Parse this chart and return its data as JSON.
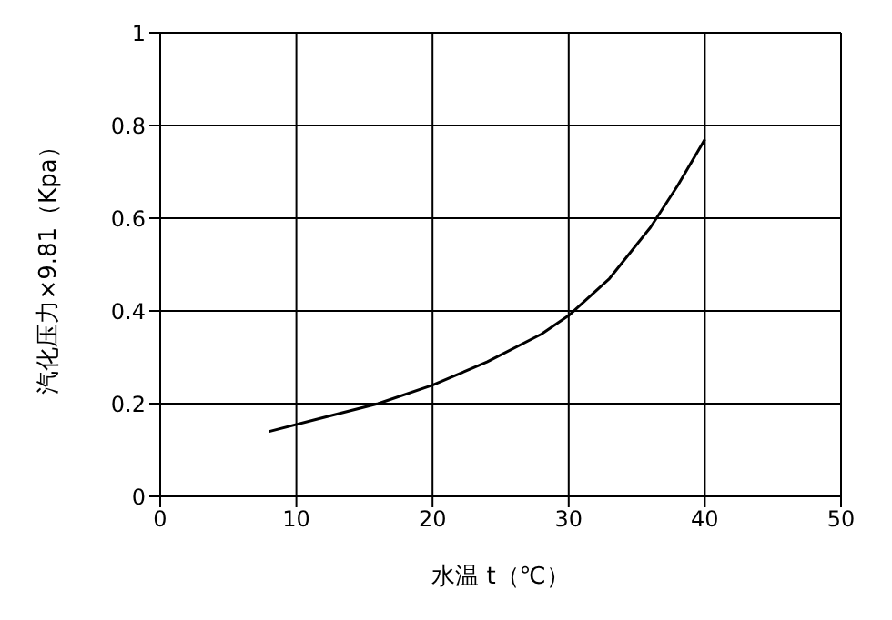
{
  "chart_data": {
    "type": "line",
    "xlabel": "水温 t（℃）",
    "ylabel": "汽化压力×9.81（Kpa）",
    "x": [
      8,
      12,
      16,
      20,
      24,
      28,
      30,
      33,
      36,
      38,
      40
    ],
    "series": [
      {
        "color": "#000000",
        "values": [
          0.14,
          0.17,
          0.2,
          0.24,
          0.29,
          0.35,
          0.39,
          0.47,
          0.58,
          0.67,
          0.77
        ]
      }
    ],
    "xlim": [
      0,
      50
    ],
    "xticks": [
      0,
      10,
      20,
      30,
      40,
      50
    ],
    "ylim": [
      0,
      1
    ],
    "yticks": [
      0,
      0.2,
      0.4,
      0.6,
      0.8,
      1
    ],
    "grid": true,
    "marker": "none",
    "line_style": "solid"
  }
}
